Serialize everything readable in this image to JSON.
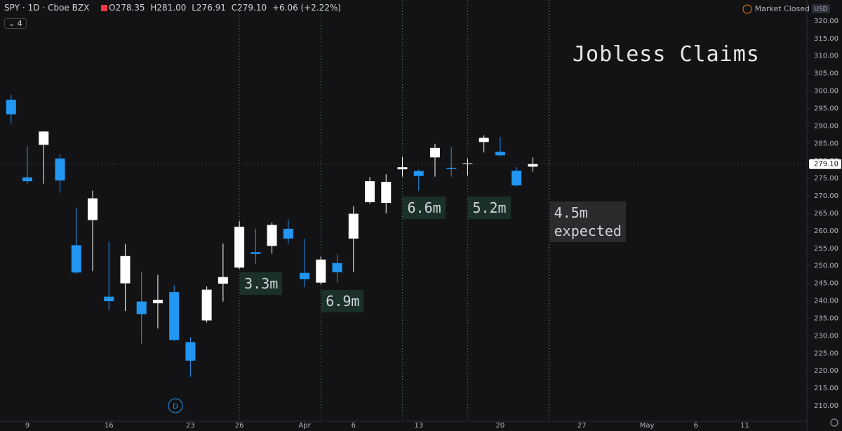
{
  "header": {
    "symbol": "SPY",
    "interval": "1D",
    "exchange": "Cboe BZX",
    "open": "O278.35",
    "high": "H281.00",
    "low": "L276.91",
    "close": "C279.10",
    "change": "+6.06 (+2.22%)",
    "indicators": "4"
  },
  "status": "Market Closed",
  "currency": "USD",
  "marker": "D",
  "chart_data": {
    "type": "candlestick",
    "title": "Jobless Claims",
    "x": [
      -1,
      0,
      1,
      2,
      3,
      4,
      5,
      6,
      7,
      8,
      9,
      10,
      11,
      12,
      13,
      14,
      15,
      16,
      17,
      18,
      19,
      20,
      21,
      22,
      23,
      24,
      25,
      26,
      27,
      28,
      29,
      30,
      31
    ],
    "open": [
      297.5,
      275.3,
      284.6,
      280.7,
      255.9,
      263.1,
      241.2,
      245.0,
      239.8,
      239.3,
      242.5,
      228.2,
      234.4,
      244.9,
      249.5,
      253.9,
      255.7,
      260.6,
      248.0,
      245.2,
      250.8,
      257.8,
      268.2,
      268.0,
      277.6,
      277.1,
      281.0,
      278.0,
      279.1,
      285.4,
      282.6,
      277.2,
      278.35
    ],
    "high": [
      298.9,
      284.2,
      288.5,
      281.9,
      266.7,
      271.5,
      256.9,
      256.2,
      248.2,
      247.4,
      244.5,
      229.6,
      244.1,
      256.4,
      262.8,
      260.6,
      262.4,
      263.3,
      257.7,
      252.7,
      253.3,
      267.0,
      275.4,
      276.2,
      281.2,
      277.5,
      284.9,
      283.9,
      280.7,
      287.3,
      286.8,
      278.2,
      281.0
    ],
    "low": [
      290.7,
      273.5,
      273.5,
      270.9,
      247.7,
      248.5,
      237.4,
      237.1,
      227.8,
      232.1,
      228.5,
      218.3,
      233.8,
      239.8,
      249.1,
      250.6,
      253.5,
      256.2,
      243.9,
      244.6,
      245.2,
      248.2,
      267.8,
      265.0,
      275.5,
      271.4,
      275.5,
      275.5,
      275.8,
      282.4,
      281.4,
      272.6,
      276.91
    ],
    "close": [
      293.3,
      274.2,
      288.4,
      274.4,
      248.1,
      269.3,
      239.9,
      252.8,
      236.2,
      240.3,
      228.8,
      222.9,
      243.2,
      246.8,
      261.2,
      253.4,
      261.7,
      257.8,
      246.2,
      251.8,
      248.2,
      264.9,
      274.2,
      274.0,
      278.2,
      275.7,
      283.7,
      277.7,
      279.3,
      286.6,
      281.6,
      273.0,
      279.1
    ],
    "up_color": "#ffffff",
    "down_color": "#2196f3",
    "last_price": {
      "value": 279.1,
      "label": "279.10"
    },
    "xlim": [
      -1.68,
      47.81
    ],
    "xticks": [
      {
        "value": 0,
        "label": "9"
      },
      {
        "value": 5,
        "label": "16"
      },
      {
        "value": 10,
        "label": "23"
      },
      {
        "value": 13,
        "label": "26"
      },
      {
        "value": 17,
        "label": "Apr"
      },
      {
        "value": 20,
        "label": "6"
      },
      {
        "value": 24,
        "label": "13"
      },
      {
        "value": 29,
        "label": "20"
      },
      {
        "value": 34,
        "label": "27"
      },
      {
        "value": 38,
        "label": "May"
      },
      {
        "value": 41,
        "label": "6"
      },
      {
        "value": 44,
        "label": "11"
      }
    ],
    "ylim": [
      205.6,
      326.0
    ],
    "yticks": [
      {
        "value": 210,
        "label": "210.00"
      },
      {
        "value": 215,
        "label": "215.00"
      },
      {
        "value": 220,
        "label": "220.00"
      },
      {
        "value": 225,
        "label": "225.00"
      },
      {
        "value": 230,
        "label": "230.00"
      },
      {
        "value": 235,
        "label": "235.00"
      },
      {
        "value": 240,
        "label": "240.00"
      },
      {
        "value": 245,
        "label": "245.00"
      },
      {
        "value": 250,
        "label": "250.00"
      },
      {
        "value": 255,
        "label": "255.00"
      },
      {
        "value": 260,
        "label": "260.00"
      },
      {
        "value": 265,
        "label": "265.00"
      },
      {
        "value": 270,
        "label": "270.00"
      },
      {
        "value": 275,
        "label": "275.00"
      },
      {
        "value": 280,
        "label": "280.00"
      },
      {
        "value": 285,
        "label": "285.00"
      },
      {
        "value": 290,
        "label": "290.00"
      },
      {
        "value": 295,
        "label": "295.00"
      },
      {
        "value": 300,
        "label": "300.00"
      },
      {
        "value": 305,
        "label": "305.00"
      },
      {
        "value": 310,
        "label": "310.00"
      },
      {
        "value": 315,
        "label": "315.00"
      },
      {
        "value": 320,
        "label": "320.00"
      }
    ],
    "grid": false,
    "annotations": [
      {
        "x": 13,
        "text": "3.3m",
        "color": "#4caf50",
        "box": "#1b3028"
      },
      {
        "x": 18,
        "text": "6.9m",
        "color": "#4caf50",
        "box": "#1b3028"
      },
      {
        "x": 23,
        "text": "6.6m",
        "color": "#4caf50",
        "box": "#1b3028"
      },
      {
        "x": 27,
        "text": "5.2m",
        "color": "#4caf50",
        "box": "#1b3028"
      },
      {
        "x": 32,
        "text": "4.5m\nexpected",
        "color": "#d1d4dc",
        "box": "#2b2b2d"
      }
    ]
  }
}
